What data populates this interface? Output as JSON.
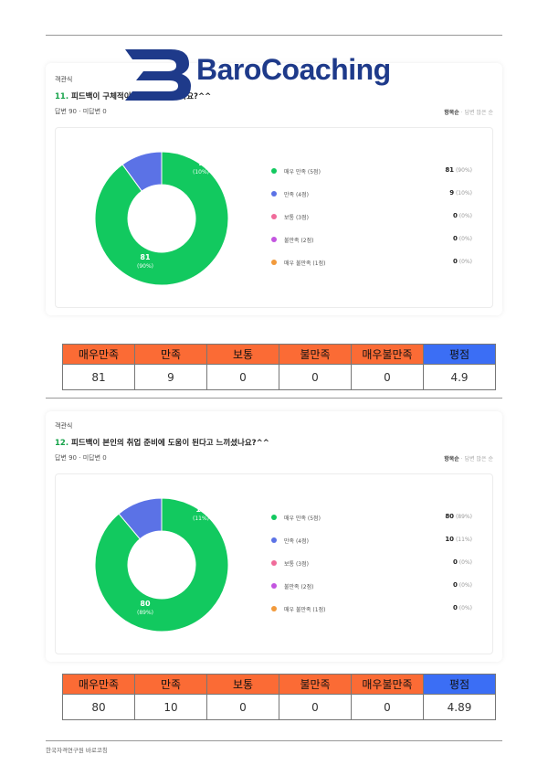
{
  "logo": {
    "text": "BaroCoaching"
  },
  "sections": [
    {
      "type_label": "객관식",
      "q_number": "11.",
      "q_text": " 피드백이 구체적이고 도움이 되었나요?^^",
      "stats": "답변 90  ·  미답변 0",
      "sort_active": "항목순",
      "sort_other": "답변 많은 순",
      "legend": [
        {
          "label": "매우 만족 (5점)",
          "count": "81",
          "pct": " (90%)",
          "color": "#12c95f"
        },
        {
          "label": "만족 (4점)",
          "count": "9",
          "pct": " (10%)",
          "color": "#5b72e6"
        },
        {
          "label": "보통 (3점)",
          "count": "0",
          "pct": " (0%)",
          "color": "#f06b9a"
        },
        {
          "label": "불만족 (2점)",
          "count": "0",
          "pct": " (0%)",
          "color": "#c355e0"
        },
        {
          "label": "매우 불만족 (1점)",
          "count": "0",
          "pct": " (0%)",
          "color": "#f29a3b"
        }
      ],
      "donut_labels": [
        {
          "value": "9",
          "pct": "(10%)"
        },
        {
          "value": "81",
          "pct": "(90%)"
        }
      ],
      "table_headers": [
        "매우만족",
        "만족",
        "보통",
        "불만족",
        "매우불만족",
        "평점"
      ],
      "table_values": [
        "81",
        "9",
        "0",
        "0",
        "0",
        "4.9"
      ]
    },
    {
      "type_label": "객관식",
      "q_number": "12.",
      "q_text": " 피드백이 본인의 취업 준비에 도움이 된다고 느끼셨나요?^^",
      "stats": "답변 90  ·  미답변 0",
      "sort_active": "항목순",
      "sort_other": "답변 많은 순",
      "legend": [
        {
          "label": "매우 만족 (5점)",
          "count": "80",
          "pct": " (89%)",
          "color": "#12c95f"
        },
        {
          "label": "만족 (4점)",
          "count": "10",
          "pct": " (11%)",
          "color": "#5b72e6"
        },
        {
          "label": "보통 (3점)",
          "count": "0",
          "pct": " (0%)",
          "color": "#f06b9a"
        },
        {
          "label": "불만족 (2점)",
          "count": "0",
          "pct": " (0%)",
          "color": "#c355e0"
        },
        {
          "label": "매우 불만족 (1점)",
          "count": "0",
          "pct": " (0%)",
          "color": "#f29a3b"
        }
      ],
      "donut_labels": [
        {
          "value": "10",
          "pct": "(11%)"
        },
        {
          "value": "80",
          "pct": "(89%)"
        }
      ],
      "table_headers": [
        "매우만족",
        "만족",
        "보통",
        "불만족",
        "매우불만족",
        "평점"
      ],
      "table_values": [
        "80",
        "10",
        "0",
        "0",
        "0",
        "4.89"
      ]
    }
  ],
  "footer": "한국자격연구원 바로코칭"
}
